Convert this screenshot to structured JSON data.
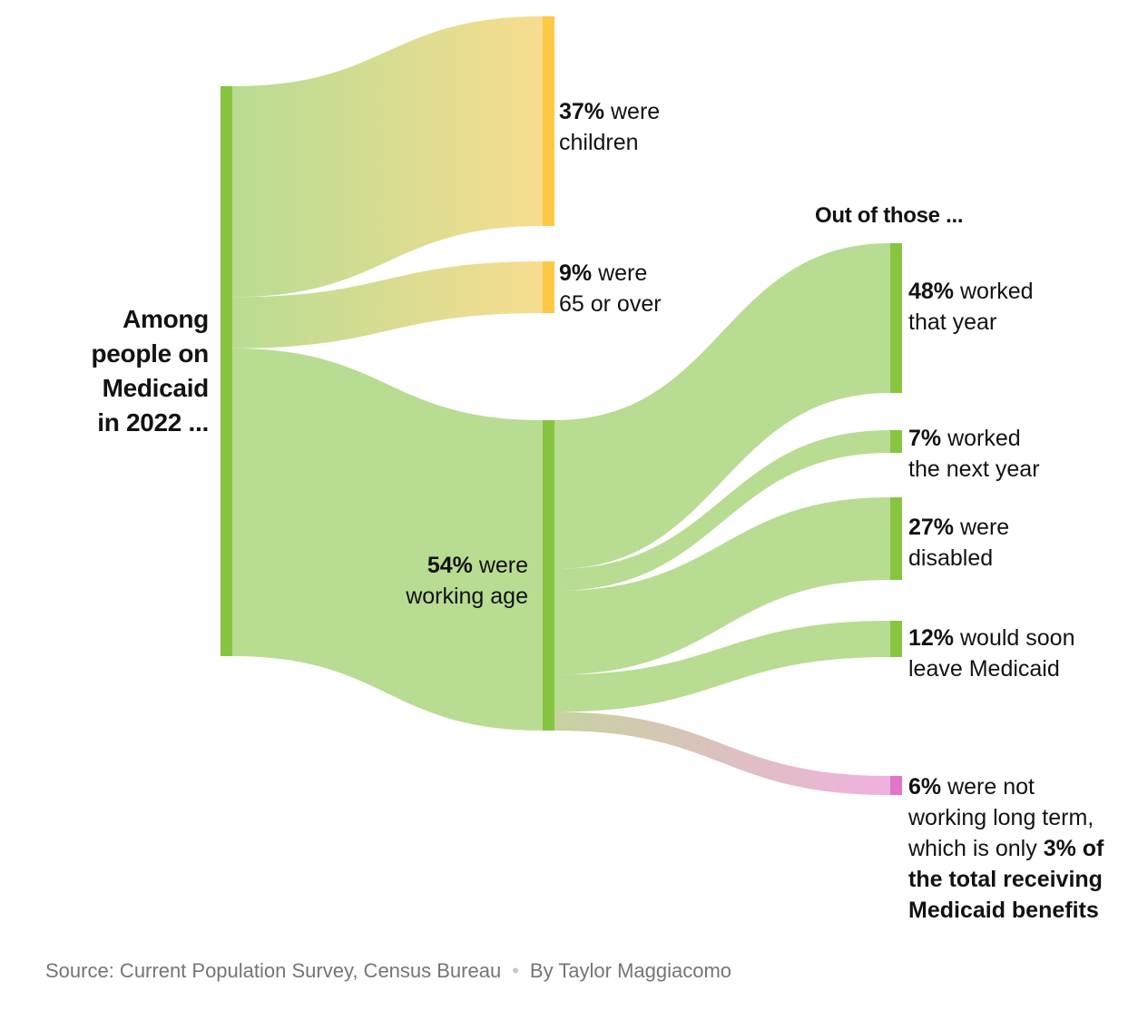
{
  "chart_data": {
    "type": "sankey",
    "root": {
      "label": "Among people on Medicaid in 2022 ...",
      "lines": [
        "Among",
        "people on",
        "Medicaid",
        "in 2022 ..."
      ],
      "value": 100
    },
    "level1": [
      {
        "id": "children",
        "value": 37,
        "pct": "37%",
        "text": "were children",
        "lines": [
          "were",
          "children"
        ],
        "color": "#fac84a"
      },
      {
        "id": "over65",
        "value": 9,
        "pct": "9%",
        "text": "were 65 or over",
        "lines": [
          "were",
          "65 or over"
        ],
        "color": "#fac84a"
      },
      {
        "id": "working_age",
        "value": 54,
        "pct": "54%",
        "text": "were working age",
        "lines": [
          "were",
          "working age"
        ],
        "color": "#87c540"
      }
    ],
    "level2_header": "Out of those ...",
    "level2": [
      {
        "id": "worked",
        "value": 48,
        "pct": "48%",
        "text": "worked that year",
        "lines": [
          "worked",
          "that year"
        ],
        "color": "#87c540"
      },
      {
        "id": "worked_next",
        "value": 7,
        "pct": "7%",
        "text": "worked the next year",
        "lines": [
          "worked",
          "the next year"
        ],
        "color": "#87c540"
      },
      {
        "id": "disabled",
        "value": 27,
        "pct": "27%",
        "text": "were disabled",
        "lines": [
          "were",
          "disabled"
        ],
        "color": "#87c540"
      },
      {
        "id": "leave",
        "value": 12,
        "pct": "12%",
        "text": "would soon leave Medicaid",
        "lines": [
          "would soon",
          "leave Medicaid"
        ],
        "color": "#87c540"
      },
      {
        "id": "not_working",
        "value": 6,
        "pct": "6%",
        "text": "were not working long term, which is only 3% of the total receiving Medicaid benefits",
        "lines": [
          "were not",
          "working long term,",
          "which is only"
        ],
        "emphasis": "3% of",
        "emphasis_lines": [
          "the total receiving",
          "Medicaid benefits"
        ],
        "color": "#e175c8"
      }
    ],
    "colors": {
      "root": "#87c540",
      "working_flow": "#b8dc92",
      "elderly_flow": "#f5dc92",
      "pink_flow": "#efb1df"
    }
  },
  "footer": {
    "source": "Source: Current Population Survey, Census Bureau",
    "separator": "•",
    "byline": "By Taylor Maggiacomo"
  }
}
